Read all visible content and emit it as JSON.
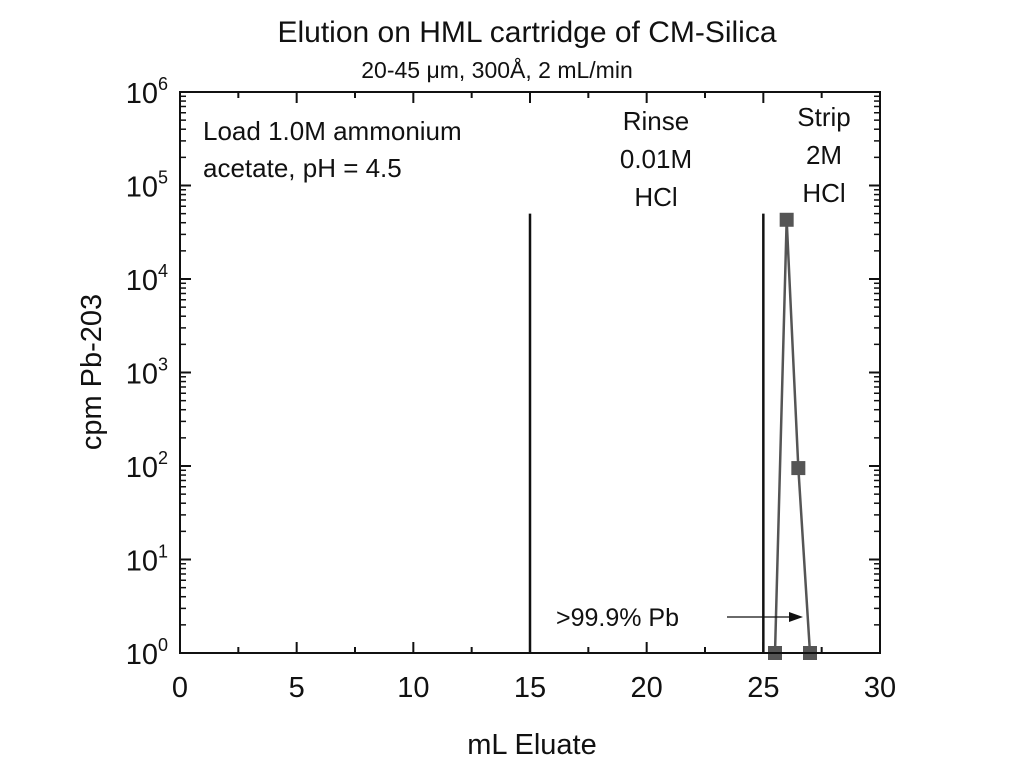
{
  "chart_data": {
    "type": "scatter",
    "title": "Elution on HML cartridge of CM-Silica",
    "subtitle": "20-45 μm, 300Å, 2 mL/min",
    "xlabel": "mL Eluate",
    "ylabel": "cpm Pb-203",
    "xlim": [
      0,
      30
    ],
    "ylim": [
      1,
      1000000
    ],
    "yscale": "log",
    "grid": false,
    "x_ticks": [
      "0",
      "5",
      "10",
      "15",
      "20",
      "25",
      "30"
    ],
    "y_ticks": [
      {
        "base": "10",
        "exp": "0"
      },
      {
        "base": "10",
        "exp": "1"
      },
      {
        "base": "10",
        "exp": "2"
      },
      {
        "base": "10",
        "exp": "3"
      },
      {
        "base": "10",
        "exp": "4"
      },
      {
        "base": "10",
        "exp": "5"
      },
      {
        "base": "10",
        "exp": "6"
      }
    ],
    "series": [
      {
        "x": [
          25.5,
          26.0,
          26.5,
          27.0
        ],
        "y": [
          1,
          43000,
          95,
          1
        ],
        "color": "#555555",
        "marker": "square"
      }
    ],
    "vertical_lines": [
      15,
      25
    ],
    "annotations": {
      "load": [
        "Load 1.0M ammonium",
        "acetate, pH = 4.5"
      ],
      "rinse": [
        "Rinse",
        "0.01M",
        "HCl"
      ],
      "strip": [
        "Strip",
        "2M",
        "HCl"
      ],
      "arrow_label": ">99.9% Pb"
    }
  }
}
